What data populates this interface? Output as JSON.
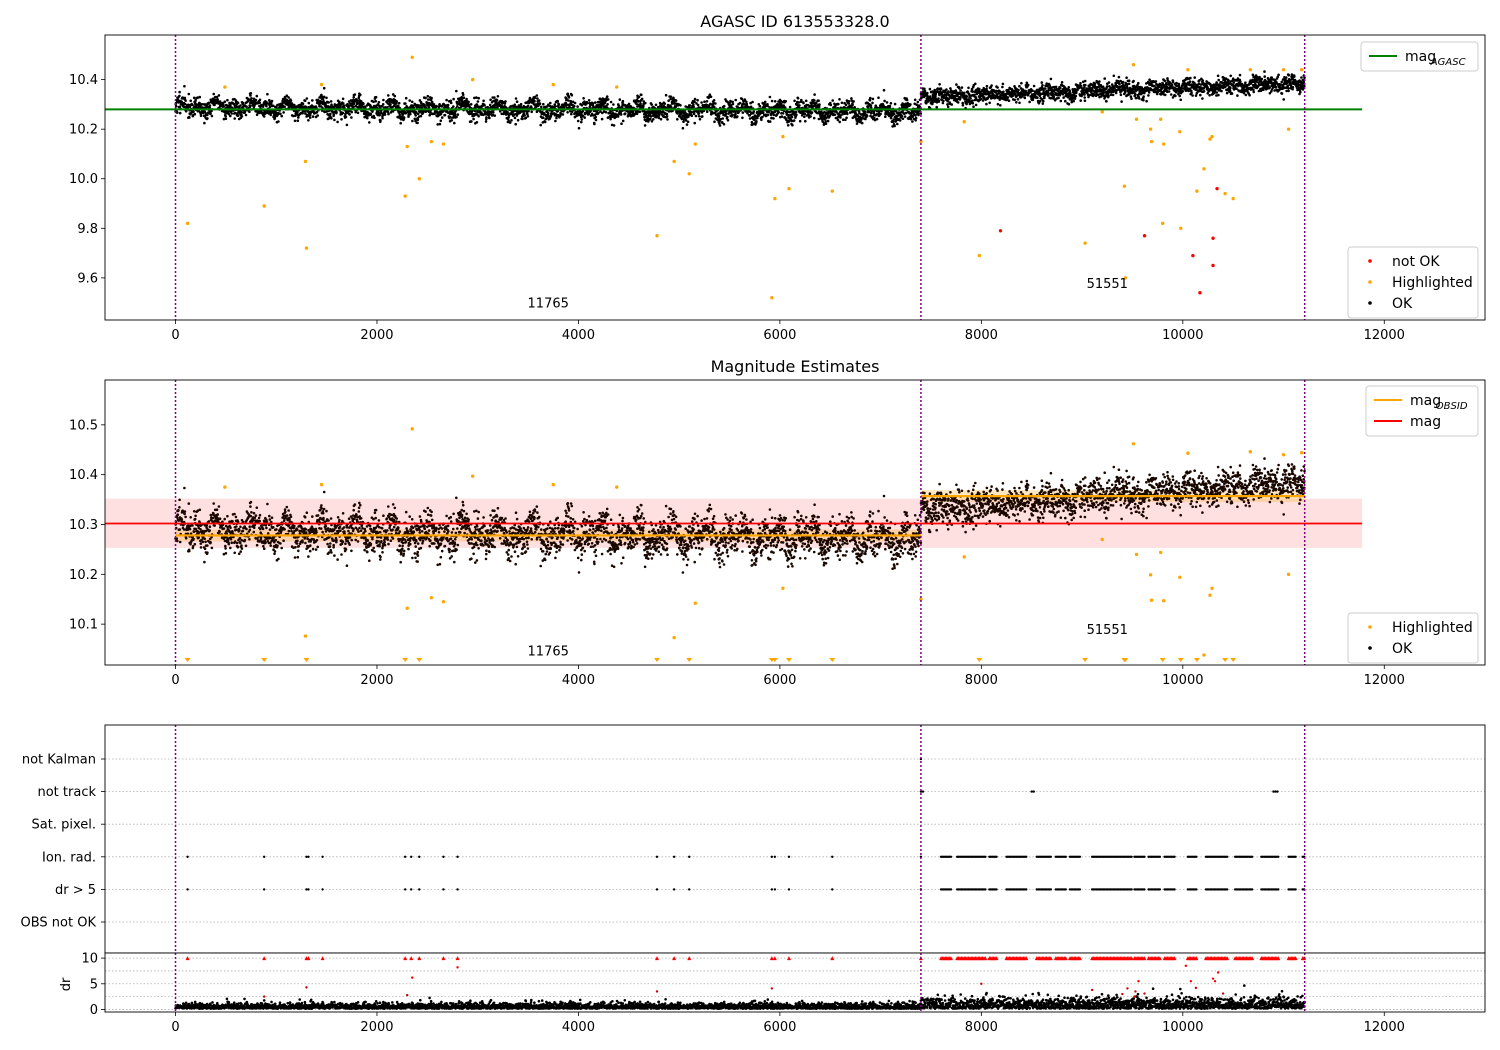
{
  "chart_data": [
    {
      "type": "scatter",
      "title": "AGASC ID 613553328.0",
      "xlim": [
        -700,
        13000
      ],
      "ylim": [
        9.43,
        10.58
      ],
      "xticks": [
        0,
        2000,
        4000,
        6000,
        8000,
        10000,
        12000
      ],
      "yticks": [
        9.6,
        9.8,
        10.0,
        10.2,
        10.4
      ],
      "vlines": [
        0,
        7400,
        11210
      ],
      "hline": {
        "name": "mag_AGASC",
        "value": 10.28,
        "x": [
          -700,
          11780
        ],
        "color": "#008000"
      },
      "annotations": [
        {
          "text": "11765",
          "x": 3700,
          "y": 9.48
        },
        {
          "text": "51551",
          "x": 9250,
          "y": 9.56
        }
      ],
      "segments": [
        {
          "x0": 0,
          "x1": 7400,
          "y0": 10.29,
          "y1": 10.27,
          "spread": 0.035,
          "osc": 0.025
        },
        {
          "x0": 7400,
          "x1": 11210,
          "y0": 10.33,
          "y1": 10.385,
          "spread": 0.03,
          "osc": 0.012
        }
      ],
      "legend_upper": [
        {
          "label": "mag",
          "sub": "AGASC",
          "color": "#008000"
        }
      ],
      "legend_lower": [
        {
          "label": "not OK",
          "color": "#ff0000"
        },
        {
          "label": "Highlighted",
          "color": "#ffa500"
        },
        {
          "label": "OK",
          "color": "#000000"
        }
      ],
      "highlighted_points": [
        [
          120,
          9.82
        ],
        [
          880,
          9.89
        ],
        [
          1290,
          10.07
        ],
        [
          1300,
          9.72
        ],
        [
          2280,
          9.93
        ],
        [
          2300,
          10.13
        ],
        [
          2350,
          10.49
        ],
        [
          2420,
          10.0
        ],
        [
          2540,
          10.15
        ],
        [
          2660,
          10.14
        ],
        [
          2950,
          10.4
        ],
        [
          4780,
          9.77
        ],
        [
          4950,
          10.07
        ],
        [
          5100,
          10.02
        ],
        [
          5160,
          10.14
        ],
        [
          5920,
          9.52
        ],
        [
          5950,
          9.92
        ],
        [
          6030,
          10.17
        ],
        [
          6090,
          9.96
        ],
        [
          6520,
          9.95
        ],
        [
          7400,
          10.15
        ],
        [
          7830,
          10.23
        ],
        [
          7980,
          9.69
        ],
        [
          9030,
          9.74
        ],
        [
          9200,
          10.27
        ],
        [
          9420,
          9.97
        ],
        [
          9430,
          9.6
        ],
        [
          9540,
          10.24
        ],
        [
          9680,
          10.2
        ],
        [
          9690,
          10.15
        ],
        [
          9780,
          10.24
        ],
        [
          9800,
          9.82
        ],
        [
          9810,
          10.14
        ],
        [
          9970,
          10.19
        ],
        [
          9980,
          9.8
        ],
        [
          10140,
          9.95
        ],
        [
          10210,
          10.04
        ],
        [
          10270,
          10.16
        ],
        [
          10290,
          10.17
        ],
        [
          10420,
          9.94
        ],
        [
          10500,
          9.92
        ],
        [
          11050,
          10.2
        ],
        [
          490,
          10.37
        ],
        [
          1450,
          10.38
        ],
        [
          3750,
          10.38
        ],
        [
          4380,
          10.37
        ],
        [
          9510,
          10.46
        ],
        [
          10050,
          10.44
        ],
        [
          10670,
          10.44
        ],
        [
          11000,
          10.44
        ],
        [
          11180,
          10.44
        ]
      ],
      "notok_points": [
        [
          8190,
          9.79
        ],
        [
          9620,
          9.77
        ],
        [
          10100,
          9.69
        ],
        [
          10170,
          9.54
        ],
        [
          10300,
          9.65
        ],
        [
          10300,
          9.76
        ],
        [
          10340,
          9.96
        ]
      ]
    },
    {
      "type": "scatter",
      "title": "Magnitude Estimates",
      "xlim": [
        -700,
        13000
      ],
      "ylim": [
        10.018,
        10.59
      ],
      "xticks": [
        0,
        2000,
        4000,
        6000,
        8000,
        10000,
        12000
      ],
      "yticks": [
        10.1,
        10.2,
        10.3,
        10.4,
        10.5
      ],
      "vlines": [
        0,
        7400,
        11210
      ],
      "mag": {
        "value": 10.302,
        "band": [
          10.253,
          10.352
        ],
        "x": [
          -700,
          11780
        ],
        "color": "#ff0000"
      },
      "mag_obsid": [
        {
          "x": [
            0,
            7400
          ],
          "value": 10.278,
          "band": [
            10.266,
            10.29
          ]
        },
        {
          "x": [
            7400,
            11210
          ],
          "value": 10.357,
          "band": [
            10.345,
            10.369
          ]
        }
      ],
      "annotations": [
        {
          "text": "11765",
          "x": 3700,
          "y": 10.037
        },
        {
          "text": "51551",
          "x": 9250,
          "y": 10.08
        }
      ],
      "segments": [
        {
          "x0": 0,
          "x1": 7400,
          "y0": 10.29,
          "y1": 10.27,
          "spread": 0.035,
          "osc": 0.025
        },
        {
          "x0": 7400,
          "x1": 11210,
          "y0": 10.33,
          "y1": 10.385,
          "spread": 0.03,
          "osc": 0.012
        }
      ],
      "legend_upper": [
        {
          "label": "mag",
          "sub": "OBSID",
          "color": "#ffa500"
        },
        {
          "label": "mag",
          "sub": "",
          "color": "#ff0000"
        }
      ],
      "legend_lower": [
        {
          "label": "Highlighted",
          "color": "#ffa500"
        },
        {
          "label": "OK",
          "color": "#000000"
        }
      ],
      "highlighted_points": [
        [
          1290,
          10.076
        ],
        [
          2300,
          10.132
        ],
        [
          2350,
          10.492
        ],
        [
          2540,
          10.153
        ],
        [
          2660,
          10.145
        ],
        [
          2950,
          10.397
        ],
        [
          4950,
          10.073
        ],
        [
          5160,
          10.142
        ],
        [
          6030,
          10.172
        ],
        [
          7400,
          10.15
        ],
        [
          7830,
          10.235
        ],
        [
          9200,
          10.27
        ],
        [
          9540,
          10.24
        ],
        [
          9680,
          10.199
        ],
        [
          9690,
          10.148
        ],
        [
          9780,
          10.244
        ],
        [
          9810,
          10.147
        ],
        [
          9970,
          10.194
        ],
        [
          10210,
          10.038
        ],
        [
          10270,
          10.158
        ],
        [
          10290,
          10.172
        ],
        [
          11050,
          10.2
        ],
        [
          490,
          10.375
        ],
        [
          1450,
          10.38
        ],
        [
          3750,
          10.38
        ],
        [
          4380,
          10.375
        ],
        [
          9510,
          10.462
        ],
        [
          10050,
          10.443
        ],
        [
          10670,
          10.446
        ],
        [
          11000,
          10.44
        ],
        [
          11180,
          10.444
        ]
      ],
      "below_range_x": [
        120,
        880,
        1300,
        2280,
        2420,
        4780,
        5100,
        5920,
        5950,
        6090,
        6520,
        7980,
        9030,
        9420,
        9430,
        9800,
        9980,
        10140,
        10420,
        10500
      ]
    },
    {
      "type": "scatter",
      "xlim": [
        -700,
        13000
      ],
      "xticks": [
        0,
        2000,
        4000,
        6000,
        8000,
        10000,
        12000
      ],
      "vlines": [
        0,
        7400,
        11210
      ],
      "flag_categories": [
        "not Kalman",
        "not track",
        "Sat. pixel.",
        "Ion. rad.",
        "dr > 5",
        "OBS not OK"
      ],
      "flag_points": {
        "not Kalman": [
          7400
        ],
        "not track": [
          7400,
          7420,
          8500,
          8520,
          10900,
          10920,
          10940
        ],
        "Sat. pixel.": [],
        "Ion. rad.": [
          120,
          880,
          1300,
          1320,
          1460,
          2280,
          2340,
          2420,
          2660,
          2800,
          4780,
          4950,
          5100,
          5920,
          5950,
          6090,
          6520,
          7400
        ],
        "dr > 5": [
          120,
          880,
          1300,
          1320,
          1460,
          2280,
          2340,
          2420,
          2660,
          2800,
          4780,
          4950,
          5100,
          5920,
          5950,
          6090,
          6520,
          7400
        ]
      },
      "flag_clusters": [
        [
          7600,
          7700
        ],
        [
          7760,
          8050
        ],
        [
          8080,
          8160
        ],
        [
          8250,
          8450
        ],
        [
          8550,
          8700
        ],
        [
          8740,
          8850
        ],
        [
          8880,
          8980
        ],
        [
          9100,
          9500
        ],
        [
          9520,
          9620
        ],
        [
          9660,
          9780
        ],
        [
          9820,
          9930
        ],
        [
          10050,
          10140
        ],
        [
          10230,
          10450
        ],
        [
          10520,
          10700
        ],
        [
          10780,
          10950
        ],
        [
          11050,
          11120
        ],
        [
          11190,
          11210
        ]
      ],
      "dr_ylabel": "dr",
      "dr_ylim": [
        -0.5,
        11
      ],
      "dr_yticks": [
        0,
        5,
        10
      ],
      "dr_threshold": 10,
      "dr_extra_points": [
        [
          880,
          2.5
        ],
        [
          1300,
          4.3
        ],
        [
          2300,
          2.8
        ],
        [
          2350,
          6.2
        ],
        [
          2800,
          8.2
        ],
        [
          4780,
          3.5
        ],
        [
          5920,
          4.1
        ],
        [
          8000,
          5.0
        ],
        [
          9100,
          3.8
        ],
        [
          9400,
          3.0
        ],
        [
          9450,
          4.1
        ],
        [
          9520,
          2.5
        ],
        [
          9530,
          3.5
        ],
        [
          9560,
          5.5
        ],
        [
          9620,
          3.1
        ],
        [
          10030,
          8.5
        ],
        [
          10080,
          5.5
        ],
        [
          10130,
          4.2
        ],
        [
          10300,
          6.0
        ],
        [
          10320,
          5.5
        ],
        [
          10350,
          7.2
        ],
        [
          10400,
          3.1
        ]
      ]
    }
  ]
}
